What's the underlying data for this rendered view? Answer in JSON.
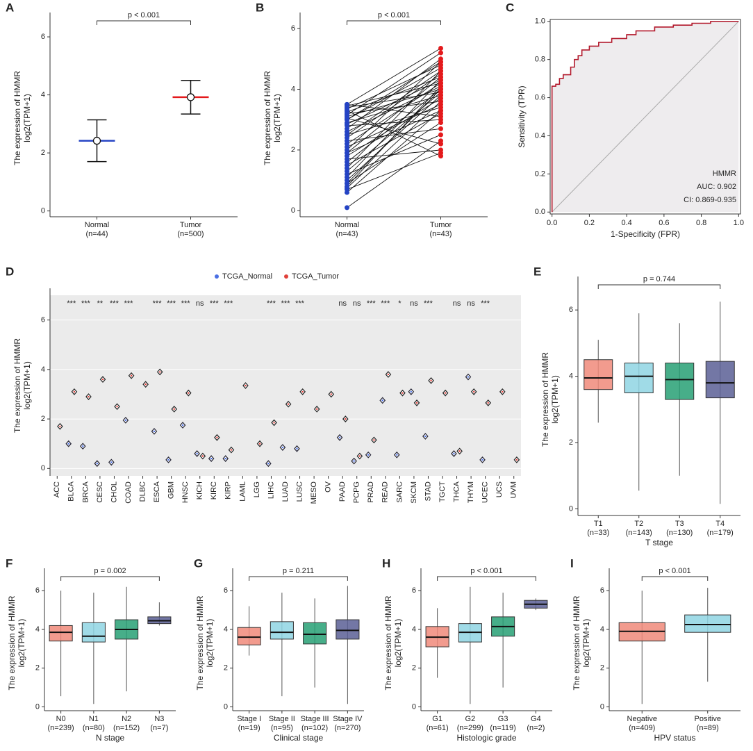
{
  "chart_data": [
    {
      "type": "dot",
      "label": "A",
      "y_label": [
        "The expression of HMMR",
        "log2(TPM+1)"
      ],
      "categories": [
        "Normal",
        "Tumor"
      ],
      "category_counts": [
        "(n=44)",
        "(n=500)"
      ],
      "values": [
        2.42,
        3.92
      ],
      "errors": [
        0.72,
        0.58
      ],
      "colors": [
        "#2443c4",
        "#e41a1c"
      ],
      "annotation": "p < 0.001",
      "ylim": [
        -0.2,
        6.6
      ],
      "yticks": [
        0,
        2,
        4,
        6
      ]
    },
    {
      "type": "paired",
      "label": "B",
      "y_label": [
        "The expression of HMMR",
        "log2(TPM+1)"
      ],
      "categories": [
        "Normal",
        "Tumor"
      ],
      "category_counts": [
        "(n=43)",
        "(n=43)"
      ],
      "colors": [
        "#2443c4",
        "#e41a1c"
      ],
      "annotation": "p < 0.001",
      "pairs": [
        [
          0.1,
          2.3
        ],
        [
          0.6,
          3.3
        ],
        [
          0.7,
          1.9
        ],
        [
          0.75,
          3.6
        ],
        [
          0.8,
          4.1
        ],
        [
          0.9,
          2.9
        ],
        [
          1.0,
          3.8
        ],
        [
          1.1,
          4.3
        ],
        [
          1.2,
          2.5
        ],
        [
          1.3,
          3.9
        ],
        [
          1.4,
          4.6
        ],
        [
          1.5,
          3.2
        ],
        [
          1.6,
          4.0
        ],
        [
          1.7,
          2.0
        ],
        [
          1.8,
          3.7
        ],
        [
          1.9,
          4.4
        ],
        [
          2.0,
          4.9
        ],
        [
          2.1,
          3.5
        ],
        [
          2.2,
          4.2
        ],
        [
          2.3,
          2.7
        ],
        [
          2.4,
          4.5
        ],
        [
          2.5,
          3.4
        ],
        [
          2.6,
          4.1
        ],
        [
          2.7,
          5.0
        ],
        [
          2.8,
          3.0
        ],
        [
          2.85,
          4.3
        ],
        [
          2.9,
          3.8
        ],
        [
          3.0,
          4.7
        ],
        [
          3.05,
          2.2
        ],
        [
          3.1,
          4.0
        ],
        [
          3.15,
          5.2
        ],
        [
          3.2,
          3.6
        ],
        [
          3.25,
          4.4
        ],
        [
          3.3,
          1.8
        ],
        [
          3.35,
          4.8
        ],
        [
          3.4,
          3.9
        ],
        [
          3.45,
          4.2
        ],
        [
          3.5,
          5.35
        ],
        [
          3.5,
          3.1
        ],
        [
          2.5,
          4.6
        ],
        [
          1.9,
          3.3
        ],
        [
          3.0,
          4.9
        ],
        [
          0.9,
          4.0
        ]
      ],
      "ylim": [
        -0.2,
        6.3
      ],
      "yticks": [
        0,
        2,
        4,
        6
      ]
    },
    {
      "type": "line",
      "label": "C",
      "x_label": "1-Specificity (FPR)",
      "y_label": [
        "Sensitivity (TPR)"
      ],
      "color": "#b2182b",
      "annotations": [
        "HMMR",
        "AUC: 0.902",
        "CI: 0.869-0.935"
      ],
      "x": [
        0,
        0,
        0.02,
        0.02,
        0.04,
        0.04,
        0.06,
        0.06,
        0.1,
        0.1,
        0.12,
        0.12,
        0.14,
        0.14,
        0.16,
        0.16,
        0.2,
        0.2,
        0.25,
        0.25,
        0.32,
        0.32,
        0.4,
        0.4,
        0.45,
        0.45,
        0.55,
        0.55,
        0.65,
        0.65,
        0.75,
        0.75,
        0.85,
        0.85,
        1
      ],
      "y": [
        0,
        0.66,
        0.66,
        0.67,
        0.67,
        0.7,
        0.7,
        0.72,
        0.72,
        0.76,
        0.76,
        0.8,
        0.8,
        0.82,
        0.82,
        0.85,
        0.85,
        0.87,
        0.87,
        0.89,
        0.89,
        0.91,
        0.91,
        0.93,
        0.93,
        0.95,
        0.95,
        0.97,
        0.97,
        0.98,
        0.98,
        0.99,
        0.99,
        1,
        1
      ],
      "xlim": [
        -0.01,
        1.01
      ],
      "ylim": [
        -0.01,
        1.01
      ],
      "xticks": [
        {
          "value": 0,
          "label": "0.0"
        },
        0.2,
        0.4,
        0.6,
        0.8,
        {
          "value": 1,
          "label": "1.0"
        }
      ],
      "yticks": [
        {
          "value": 0,
          "label": "0.0"
        },
        0.2,
        0.4,
        0.6,
        0.8,
        {
          "value": 1,
          "label": "1.0"
        }
      ]
    },
    {
      "type": "dot",
      "label": "D",
      "y_label": [
        "The expression of HMMR",
        "log2(TPM+1)"
      ],
      "categories": [
        "ACC",
        "BLCA",
        "BRCA",
        "CESC",
        "CHOL",
        "COAD",
        "DLBC",
        "ESCA",
        "GBM",
        "HNSC",
        "KICH",
        "KIRC",
        "KIRP",
        "LAML",
        "LGG",
        "LIHC",
        "LUAD",
        "LUSC",
        "MESO",
        "OV",
        "PAAD",
        "PCPG",
        "PRAD",
        "READ",
        "SARC",
        "SKCM",
        "STAD",
        "TGCT",
        "THCA",
        "THYM",
        "UCEC",
        "UCS",
        "UVM"
      ],
      "series": [
        {
          "name": "TCGA_Normal",
          "color": "#4a6fe3",
          "values": [
            null,
            1.0,
            0.9,
            0.2,
            0.25,
            1.95,
            null,
            1.5,
            0.35,
            1.75,
            0.6,
            0.4,
            0.4,
            null,
            null,
            0.2,
            0.85,
            0.8,
            null,
            null,
            1.25,
            0.3,
            0.55,
            2.75,
            0.55,
            3.1,
            1.3,
            null,
            0.6,
            3.7,
            0.35,
            null,
            null
          ]
        },
        {
          "name": "TCGA_Tumor",
          "color": "#e0403a",
          "values": [
            1.7,
            3.1,
            2.9,
            3.6,
            2.5,
            3.75,
            3.4,
            3.9,
            2.4,
            3.05,
            0.5,
            1.25,
            0.75,
            3.35,
            1.0,
            1.85,
            2.6,
            3.1,
            2.4,
            3.0,
            2.0,
            0.5,
            1.15,
            3.8,
            3.05,
            2.65,
            3.55,
            3.05,
            0.7,
            3.1,
            2.65,
            3.1,
            0.35
          ]
        }
      ],
      "significance": [
        null,
        "***",
        "***",
        "**",
        "***",
        "***",
        null,
        "***",
        "***",
        "***",
        "ns",
        "***",
        "***",
        null,
        null,
        "***",
        "***",
        "***",
        null,
        null,
        "ns",
        "ns",
        "***",
        "***",
        "*",
        "ns",
        "***",
        null,
        "ns",
        "ns",
        "***",
        null,
        null
      ],
      "legend": "top",
      "grid": true,
      "ylim": [
        -0.3,
        7
      ],
      "yticks": [
        0,
        2,
        4,
        6
      ]
    },
    {
      "type": "box",
      "label": "E",
      "x_label": "T stage",
      "y_label": [
        "The expression of HMMR",
        "log2(TPM+1)"
      ],
      "categories": [
        "T1",
        "T2",
        "T3",
        "T4"
      ],
      "category_counts": [
        "(n=33)",
        "(n=143)",
        "(n=130)",
        "(n=179)"
      ],
      "colors": [
        "#f08a7a",
        "#8fd5e3",
        "#27a074",
        "#5b5f95"
      ],
      "annotation": "p = 0.744",
      "min": [
        2.6,
        0.55,
        1.0,
        0.15
      ],
      "q1": [
        3.6,
        3.5,
        3.3,
        3.35
      ],
      "median": [
        3.95,
        4.0,
        3.9,
        3.8
      ],
      "q3": [
        4.5,
        4.4,
        4.4,
        4.45
      ],
      "max": [
        5.1,
        5.9,
        5.6,
        6.25
      ],
      "ylim": [
        -0.2,
        6.8
      ],
      "yticks": [
        0,
        2,
        4,
        6
      ]
    },
    {
      "type": "box",
      "label": "F",
      "x_label": "N stage",
      "y_label": [
        "The expression of HMMR",
        "log2(TPM+1)"
      ],
      "categories": [
        "N0",
        "N1",
        "N2",
        "N3"
      ],
      "category_counts": [
        "(n=239)",
        "(n=80)",
        "(n=152)",
        "(n=7)"
      ],
      "colors": [
        "#f08a7a",
        "#8fd5e3",
        "#27a074",
        "#5b5f95"
      ],
      "annotation": "p = 0.002",
      "min": [
        0.55,
        0.15,
        0.8,
        4.2
      ],
      "q1": [
        3.4,
        3.35,
        3.5,
        4.3
      ],
      "median": [
        3.85,
        3.65,
        4.0,
        4.45
      ],
      "q3": [
        4.2,
        4.35,
        4.5,
        4.65
      ],
      "max": [
        6.0,
        5.9,
        6.2,
        5.4
      ],
      "ylim": [
        -0.2,
        6.8
      ],
      "yticks": [
        0,
        2,
        4,
        6
      ]
    },
    {
      "type": "box",
      "label": "G",
      "x_label": "Clinical stage",
      "y_label": [
        "The expression of HMMR",
        "log2(TPM+1)"
      ],
      "categories": [
        "Stage I",
        "Stage II",
        "Stage III",
        "Stage IV"
      ],
      "category_counts": [
        "(n=19)",
        "(n=95)",
        "(n=102)",
        "(n=270)"
      ],
      "colors": [
        "#f08a7a",
        "#8fd5e3",
        "#27a074",
        "#5b5f95"
      ],
      "annotation": "p = 0.211",
      "min": [
        2.65,
        0.55,
        1.0,
        0.15
      ],
      "q1": [
        3.2,
        3.5,
        3.25,
        3.5
      ],
      "median": [
        3.6,
        3.85,
        3.75,
        3.95
      ],
      "q3": [
        4.1,
        4.4,
        4.35,
        4.5
      ],
      "max": [
        5.2,
        5.9,
        5.6,
        6.25
      ],
      "ylim": [
        -0.2,
        6.8
      ],
      "yticks": [
        0,
        2,
        4,
        6
      ]
    },
    {
      "type": "box",
      "label": "H",
      "x_label": "Histologic grade",
      "y_label": [
        "The expression of HMMR",
        "log2(TPM+1)"
      ],
      "categories": [
        "G1",
        "G2",
        "G3",
        "G4"
      ],
      "category_counts": [
        "(n=61)",
        "(n=299)",
        "(n=119)",
        "(n=2)"
      ],
      "colors": [
        "#f08a7a",
        "#8fd5e3",
        "#27a074",
        "#5b5f95"
      ],
      "annotation": "p < 0.001",
      "min": [
        1.5,
        0.15,
        1.0,
        5.0
      ],
      "q1": [
        3.1,
        3.35,
        3.65,
        5.1
      ],
      "median": [
        3.6,
        3.85,
        4.15,
        5.3
      ],
      "q3": [
        4.15,
        4.3,
        4.65,
        5.5
      ],
      "max": [
        5.1,
        6.2,
        5.9,
        5.6
      ],
      "ylim": [
        -0.2,
        6.8
      ],
      "yticks": [
        0,
        2,
        4,
        6
      ]
    },
    {
      "type": "box",
      "label": "I",
      "x_label": "HPV status",
      "y_label": [
        "The expression of HMMR",
        "log2(TPM+1)"
      ],
      "categories": [
        "Negative",
        "Positive"
      ],
      "category_counts": [
        "(n=409)",
        "(n=89)"
      ],
      "colors": [
        "#f08a7a",
        "#8fd5e3"
      ],
      "annotation": "p < 0.001",
      "min": [
        0.15,
        1.3
      ],
      "q1": [
        3.4,
        3.85
      ],
      "median": [
        3.9,
        4.25
      ],
      "q3": [
        4.35,
        4.75
      ],
      "max": [
        6.0,
        6.15
      ],
      "ylim": [
        -0.2,
        6.8
      ],
      "yticks": [
        0,
        2,
        4,
        6
      ]
    }
  ]
}
